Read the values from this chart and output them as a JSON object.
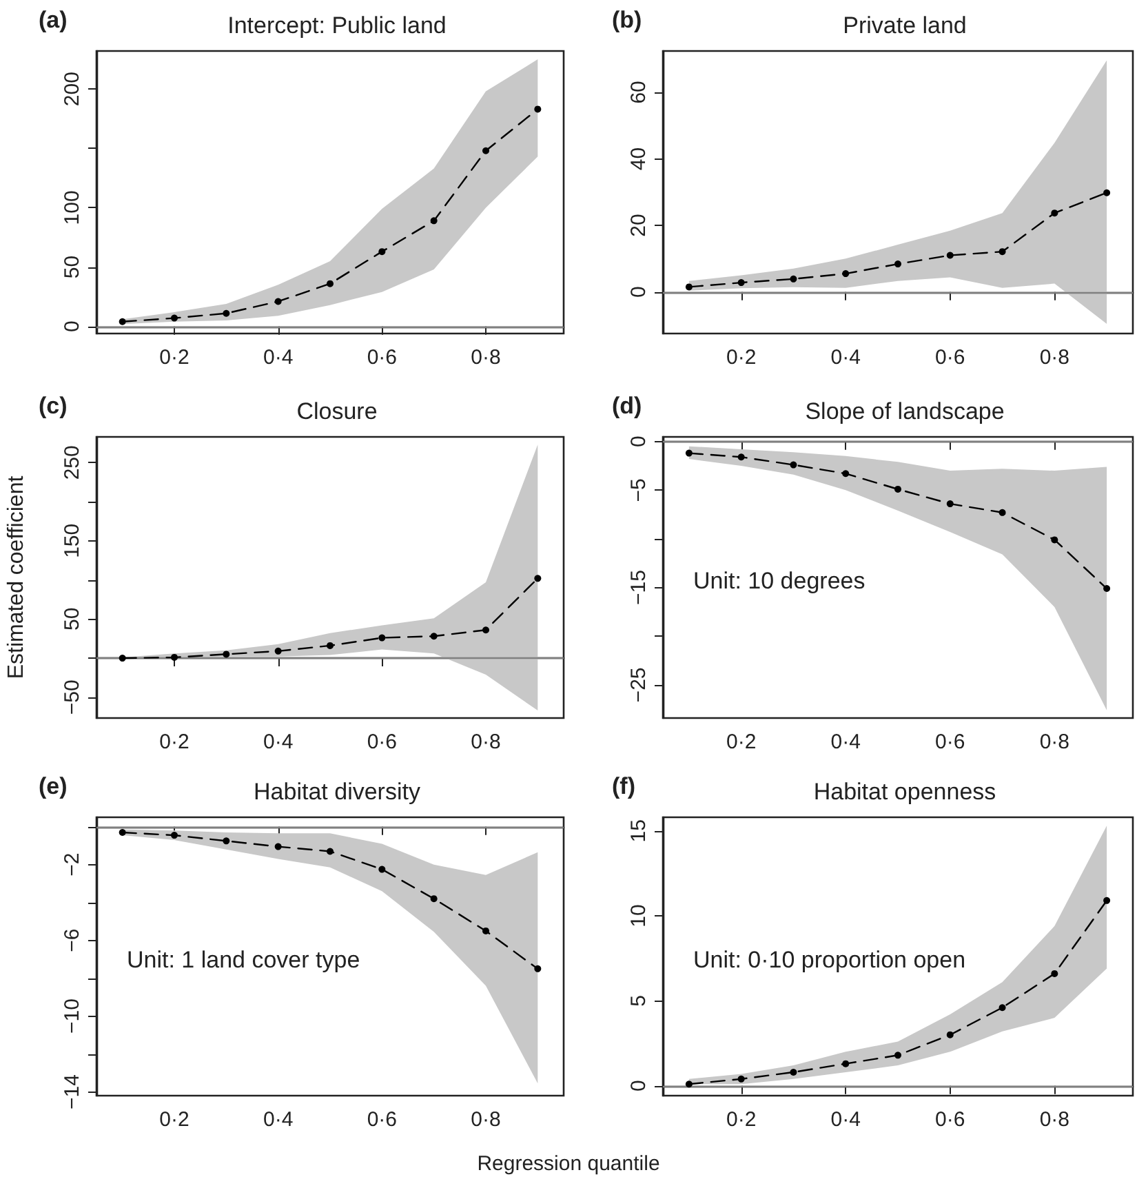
{
  "chart_data": [
    {
      "type": "line",
      "title": "Intercept: Public land",
      "annotations": [
        "(a)"
      ],
      "categories": [
        null,
        "0·2",
        null,
        "0·4",
        null,
        "0·6",
        null,
        "0·8",
        null
      ],
      "series": [
        {
          "color": "#000000",
          "values": [
            4,
            7,
            11,
            21,
            36,
            63,
            89,
            148,
            183
          ],
          "lower": [
            2,
            4,
            5,
            9,
            18,
            29,
            48,
            100,
            143
          ],
          "upper": [
            6,
            12,
            19,
            35,
            55,
            99,
            133,
            198,
            225
          ]
        }
      ],
      "ylim": [
        -6,
        232
      ],
      "yticks": [
        0,
        50,
        100,
        {
          "value": 150,
          "label": null
        },
        200
      ],
      "ref_lines": [
        {
          "axis": "y",
          "value": 0,
          "color": "#808080"
        }
      ],
      "marker": "circle",
      "line_style": "dashed",
      "grid": false
    },
    {
      "type": "line",
      "title": "Private land",
      "annotations": [
        "(b)"
      ],
      "categories": [
        null,
        "0·2",
        null,
        "0·4",
        null,
        "0·6",
        null,
        "0·8",
        null
      ],
      "series": [
        {
          "color": "#000000",
          "values": [
            1.5,
            2.8,
            3.9,
            5.5,
            8.4,
            11,
            12.1,
            23.7,
            29.8
          ],
          "lower": [
            0.4,
            1.1,
            1.4,
            1.2,
            3.3,
            4.4,
            1.2,
            2.5,
            -9.6
          ],
          "upper": [
            3.3,
            5,
            7,
            10,
            14.2,
            18.4,
            23.7,
            44.8,
            69.6
          ]
        }
      ],
      "ylim": [
        -12.5,
        72.4
      ],
      "yticks": [
        0,
        20,
        40,
        60
      ],
      "ref_lines": [
        {
          "axis": "y",
          "value": 0,
          "color": "#808080"
        }
      ],
      "marker": "circle",
      "line_style": "dashed",
      "grid": false
    },
    {
      "type": "line",
      "title": "Closure",
      "ylabel": "Estimated coefficient",
      "annotations": [
        "(c)"
      ],
      "categories": [
        null,
        "0·2",
        null,
        "0·4",
        null,
        "0·6",
        null,
        "0·8",
        null
      ],
      "series": [
        {
          "color": "#000000",
          "values": [
            0,
            1,
            5,
            9,
            16,
            26,
            28,
            36,
            102
          ],
          "lower": [
            0,
            1,
            2,
            2,
            4,
            11,
            6,
            -21,
            -67
          ],
          "upper": [
            1,
            6,
            10,
            18,
            32,
            42,
            51,
            97,
            273
          ]
        }
      ],
      "ylim": [
        -76.6,
        282.9
      ],
      "yticks": [
        -50,
        {
          "value": 0,
          "label": null
        },
        50,
        {
          "value": 100,
          "label": null
        },
        150,
        {
          "value": 200,
          "label": null
        },
        250
      ],
      "ref_lines": [
        {
          "axis": "y",
          "value": 0,
          "color": "#808080"
        }
      ],
      "marker": "circle",
      "line_style": "dashed",
      "grid": false
    },
    {
      "type": "line",
      "title": "Slope of landscape",
      "annotations": [
        "(d)",
        "Unit: 10 degrees"
      ],
      "categories": [
        null,
        "0·2",
        null,
        "0·4",
        null,
        "0·6",
        null,
        "0·8",
        null
      ],
      "series": [
        {
          "color": "#000000",
          "values": [
            -1.2,
            -1.6,
            -2.4,
            -3.3,
            -4.9,
            -6.4,
            -7.3,
            -10.1,
            -15.1
          ],
          "lower": [
            -1.8,
            -2.5,
            -3.4,
            -5,
            -7.1,
            -9.3,
            -11.6,
            -17,
            -27.6
          ],
          "upper": [
            -0.5,
            -0.8,
            -1.1,
            -1.5,
            -2.1,
            -3,
            -2.8,
            -3,
            -2.6
          ]
        }
      ],
      "ylim": [
        -28.4,
        0.47
      ],
      "yticks": [
        0,
        -5,
        {
          "value": -10,
          "label": null
        },
        -15,
        {
          "value": -20,
          "label": null
        },
        -25
      ],
      "ref_lines": [
        {
          "axis": "y",
          "value": 0,
          "color": "#808080"
        }
      ],
      "marker": "circle",
      "line_style": "dashed",
      "grid": false
    },
    {
      "type": "line",
      "title": "Habitat diversity",
      "xlabel": "Regression quantile",
      "annotations": [
        "(e)",
        "Unit: 1 land cover type"
      ],
      "categories": [
        null,
        "0·2",
        null,
        "0·4",
        null,
        "0·6",
        null,
        "0·8",
        null
      ],
      "series": [
        {
          "color": "#000000",
          "values": [
            -0.3,
            -0.45,
            -0.75,
            -1.05,
            -1.3,
            -2.25,
            -3.8,
            -5.5,
            -7.5
          ],
          "lower": [
            -0.45,
            -0.7,
            -1.2,
            -1.7,
            -2.15,
            -3.4,
            -5.55,
            -8.4,
            -13.55
          ],
          "upper": [
            -0.15,
            -0.2,
            -0.3,
            -0.35,
            -0.35,
            -0.9,
            -2,
            -2.55,
            -1.35
          ]
        }
      ],
      "ylim": [
        -14.2,
        0.5
      ],
      "yticks": [
        {
          "value": 0,
          "label": null
        },
        -2,
        {
          "value": -4,
          "label": null
        },
        -6,
        {
          "value": -8,
          "label": null
        },
        -10,
        {
          "value": -12,
          "label": null
        },
        -14
      ],
      "ref_lines": [
        {
          "axis": "y",
          "value": 0,
          "color": "#808080"
        }
      ],
      "marker": "circle",
      "line_style": "dashed",
      "grid": false
    },
    {
      "type": "line",
      "title": "Habitat openness",
      "annotations": [
        "(f)",
        "Unit: 0·10 proportion open"
      ],
      "categories": [
        null,
        "0·2",
        null,
        "0·4",
        null,
        "0·6",
        null,
        "0·8",
        null
      ],
      "series": [
        {
          "color": "#000000",
          "values": [
            0.1,
            0.4,
            0.8,
            1.3,
            1.8,
            3,
            4.6,
            6.6,
            10.9
          ],
          "lower": [
            0.1,
            0.1,
            0.4,
            0.8,
            1.2,
            2,
            3.2,
            4,
            6.9
          ],
          "upper": [
            0.4,
            0.7,
            1.2,
            2,
            2.6,
            4.2,
            6.1,
            9.4,
            15.3
          ]
        }
      ],
      "ylim": [
        -0.58,
        15.8
      ],
      "yticks": [
        0,
        5,
        10,
        15
      ],
      "ref_lines": [
        {
          "axis": "y",
          "value": 0,
          "color": "#808080"
        }
      ],
      "marker": "circle",
      "line_style": "dashed",
      "grid": false
    }
  ]
}
